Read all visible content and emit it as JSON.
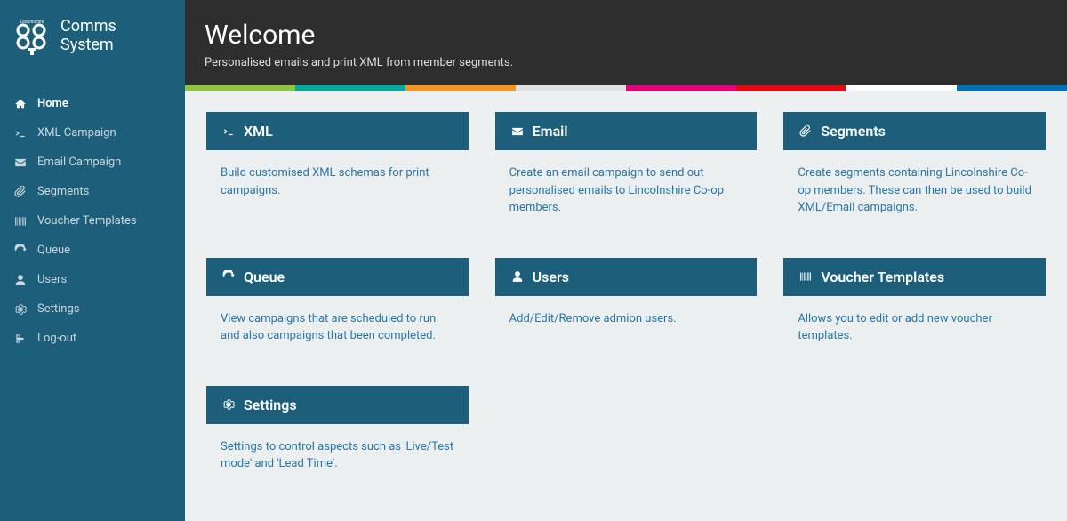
{
  "brand": "Comms System",
  "sidebar": {
    "items": [
      {
        "icon": "home",
        "label": "Home",
        "active": true
      },
      {
        "icon": "terminal",
        "label": "XML Campaign",
        "active": false
      },
      {
        "icon": "envelope",
        "label": "Email Campaign",
        "active": false
      },
      {
        "icon": "paperclip",
        "label": "Segments",
        "active": false
      },
      {
        "icon": "barcode",
        "label": "Voucher Templates",
        "active": false
      },
      {
        "icon": "refresh",
        "label": "Queue",
        "active": false
      },
      {
        "icon": "user",
        "label": "Users",
        "active": false
      },
      {
        "icon": "gear",
        "label": "Settings",
        "active": false
      },
      {
        "icon": "logout",
        "label": "Log-out",
        "active": false
      }
    ]
  },
  "header": {
    "title": "Welcome",
    "subtitle": "Personalised emails and print XML from member segments."
  },
  "stripe_colors": [
    "#8cc63e",
    "#00a99d",
    "#f7941d",
    "#e0e0e0",
    "#e5007e",
    "#e30613",
    "#ffffff",
    "#0071bc"
  ],
  "cards": [
    {
      "icon": "terminal",
      "title": "XML",
      "body": "Build customised XML schemas for print campaigns."
    },
    {
      "icon": "envelope",
      "title": "Email",
      "body": "Create an email campaign to send out personalised emails to Lincolnshire Co-op members."
    },
    {
      "icon": "paperclip",
      "title": "Segments",
      "body": "Create segments containing Lincolnshire Co-op members. These can then be used to build XML/Email campaigns."
    },
    {
      "icon": "refresh",
      "title": "Queue",
      "body": "View campaigns that are scheduled to run and also campaigns that been completed."
    },
    {
      "icon": "user",
      "title": "Users",
      "body": "Add/Edit/Remove admion users."
    },
    {
      "icon": "barcode",
      "title": "Voucher Templates",
      "body": "Allows you to edit or add new voucher templates."
    },
    {
      "icon": "gear",
      "title": "Settings",
      "body": "Settings to control aspects such as 'Live/Test mode' and 'Lead Time'."
    }
  ],
  "colors": {
    "sidebar_bg": "#1d5f7a",
    "header_bg": "#2e2e2e",
    "card_header_bg": "#1d5f7a",
    "card_body_bg": "#ebeff0",
    "link": "#2a76a4"
  }
}
